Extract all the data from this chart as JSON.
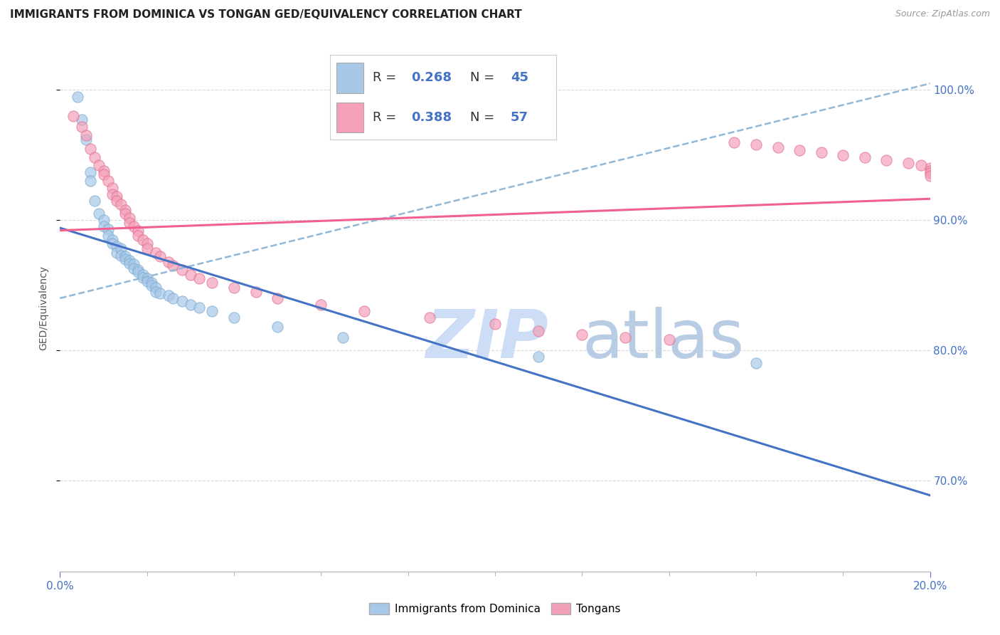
{
  "title": "IMMIGRANTS FROM DOMINICA VS TONGAN GED/EQUIVALENCY CORRELATION CHART",
  "source": "Source: ZipAtlas.com",
  "ylabel_label": "GED/Equivalency",
  "xmin": 0.0,
  "xmax": 0.2,
  "ymin": 0.63,
  "ymax": 1.035,
  "dominica_R": 0.268,
  "dominica_N": 45,
  "tongan_R": 0.388,
  "tongan_N": 57,
  "dominica_color": "#a8c8e8",
  "tongan_color": "#f4a0b8",
  "dominica_line_color": "#4472c4",
  "tongan_line_color": "#f06090",
  "dashed_line_color": "#90b8d8",
  "watermark_zip_color": "#ccddf0",
  "watermark_atlas_color": "#c8d8e8",
  "grid_color": "#d8d8d8",
  "title_color": "#222222",
  "source_color": "#999999",
  "right_axis_color": "#4472c4",
  "bottom_label_color": "#4472c4",
  "legend_box_color": "#e8e8e8",
  "dominica_points": [
    [
      0.004,
      0.995
    ],
    [
      0.005,
      0.977
    ],
    [
      0.006,
      0.962
    ],
    [
      0.007,
      0.937
    ],
    [
      0.007,
      0.93
    ],
    [
      0.008,
      0.915
    ],
    [
      0.009,
      0.905
    ],
    [
      0.01,
      0.9
    ],
    [
      0.01,
      0.895
    ],
    [
      0.011,
      0.893
    ],
    [
      0.011,
      0.888
    ],
    [
      0.012,
      0.885
    ],
    [
      0.012,
      0.882
    ],
    [
      0.013,
      0.88
    ],
    [
      0.013,
      0.875
    ],
    [
      0.014,
      0.878
    ],
    [
      0.014,
      0.873
    ],
    [
      0.015,
      0.872
    ],
    [
      0.015,
      0.87
    ],
    [
      0.016,
      0.869
    ],
    [
      0.016,
      0.867
    ],
    [
      0.017,
      0.866
    ],
    [
      0.017,
      0.863
    ],
    [
      0.018,
      0.862
    ],
    [
      0.018,
      0.86
    ],
    [
      0.019,
      0.858
    ],
    [
      0.019,
      0.856
    ],
    [
      0.02,
      0.855
    ],
    [
      0.02,
      0.853
    ],
    [
      0.021,
      0.852
    ],
    [
      0.021,
      0.85
    ],
    [
      0.022,
      0.848
    ],
    [
      0.022,
      0.845
    ],
    [
      0.023,
      0.844
    ],
    [
      0.025,
      0.842
    ],
    [
      0.026,
      0.84
    ],
    [
      0.028,
      0.838
    ],
    [
      0.03,
      0.835
    ],
    [
      0.032,
      0.833
    ],
    [
      0.035,
      0.83
    ],
    [
      0.04,
      0.825
    ],
    [
      0.05,
      0.818
    ],
    [
      0.065,
      0.81
    ],
    [
      0.11,
      0.795
    ],
    [
      0.16,
      0.79
    ]
  ],
  "tongan_points": [
    [
      0.003,
      0.98
    ],
    [
      0.005,
      0.972
    ],
    [
      0.006,
      0.965
    ],
    [
      0.007,
      0.955
    ],
    [
      0.008,
      0.948
    ],
    [
      0.009,
      0.942
    ],
    [
      0.01,
      0.938
    ],
    [
      0.01,
      0.935
    ],
    [
      0.011,
      0.93
    ],
    [
      0.012,
      0.925
    ],
    [
      0.012,
      0.92
    ],
    [
      0.013,
      0.918
    ],
    [
      0.013,
      0.915
    ],
    [
      0.014,
      0.912
    ],
    [
      0.015,
      0.908
    ],
    [
      0.015,
      0.905
    ],
    [
      0.016,
      0.902
    ],
    [
      0.016,
      0.898
    ],
    [
      0.017,
      0.895
    ],
    [
      0.018,
      0.892
    ],
    [
      0.018,
      0.888
    ],
    [
      0.019,
      0.885
    ],
    [
      0.02,
      0.882
    ],
    [
      0.02,
      0.878
    ],
    [
      0.022,
      0.875
    ],
    [
      0.023,
      0.872
    ],
    [
      0.025,
      0.868
    ],
    [
      0.026,
      0.865
    ],
    [
      0.028,
      0.862
    ],
    [
      0.03,
      0.858
    ],
    [
      0.032,
      0.855
    ],
    [
      0.035,
      0.852
    ],
    [
      0.04,
      0.848
    ],
    [
      0.045,
      0.845
    ],
    [
      0.05,
      0.84
    ],
    [
      0.06,
      0.835
    ],
    [
      0.07,
      0.83
    ],
    [
      0.085,
      0.825
    ],
    [
      0.1,
      0.82
    ],
    [
      0.11,
      0.815
    ],
    [
      0.12,
      0.812
    ],
    [
      0.13,
      0.81
    ],
    [
      0.14,
      0.808
    ],
    [
      0.155,
      0.96
    ],
    [
      0.16,
      0.958
    ],
    [
      0.165,
      0.956
    ],
    [
      0.17,
      0.954
    ],
    [
      0.175,
      0.952
    ],
    [
      0.18,
      0.95
    ],
    [
      0.185,
      0.948
    ],
    [
      0.19,
      0.946
    ],
    [
      0.195,
      0.944
    ],
    [
      0.198,
      0.942
    ],
    [
      0.2,
      0.94
    ],
    [
      0.2,
      0.938
    ],
    [
      0.2,
      0.936
    ],
    [
      0.2,
      0.934
    ]
  ]
}
